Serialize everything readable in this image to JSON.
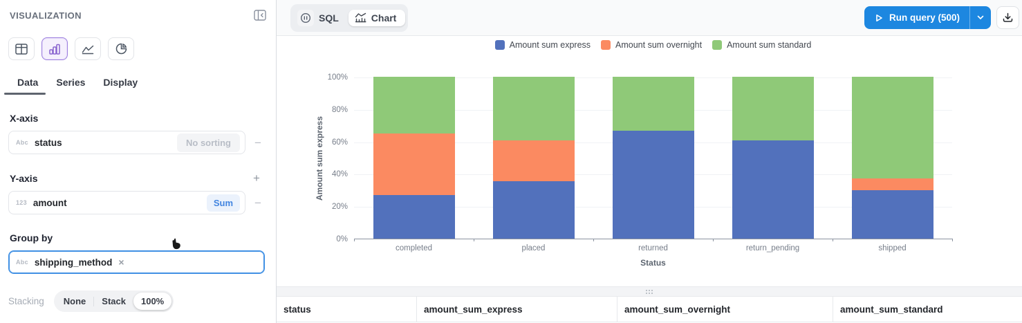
{
  "sidebar": {
    "title": "VISUALIZATION",
    "chart_type_icons": [
      {
        "name": "table",
        "selected": false
      },
      {
        "name": "bar",
        "selected": true
      },
      {
        "name": "line",
        "selected": false
      },
      {
        "name": "pie",
        "selected": false
      }
    ],
    "tabs": [
      {
        "label": "Data",
        "active": true
      },
      {
        "label": "Series",
        "active": false
      },
      {
        "label": "Display",
        "active": false
      }
    ],
    "x_axis": {
      "heading": "X-axis",
      "field_type": "Abc",
      "field": "status",
      "sort_label": "No sorting",
      "remove_label": "−"
    },
    "y_axis": {
      "heading": "Y-axis",
      "field_type": "123",
      "field": "amount",
      "aggregation_label": "Sum",
      "add_label": "+",
      "remove_label": "−"
    },
    "group_by": {
      "heading": "Group by",
      "field_type": "Abc",
      "field": "shipping_method",
      "clear_label": "×"
    },
    "stacking": {
      "heading": "Stacking",
      "options": [
        "None",
        "Stack",
        "100%"
      ],
      "selected": "100%"
    }
  },
  "toolbar": {
    "view_toggle": [
      {
        "label": "SQL",
        "icon": "sql-icon",
        "active": false
      },
      {
        "label": "Chart",
        "icon": "chart-icon",
        "active": true
      }
    ],
    "run_query_label": "Run query (500)"
  },
  "chart_data": {
    "type": "bar",
    "stacking": "100%",
    "xlabel": "Status",
    "ylabel": "Amount sum express",
    "categories": [
      "completed",
      "placed",
      "returned",
      "return_pending",
      "shipped"
    ],
    "series": [
      {
        "name": "Amount sum express",
        "color": "#5271bc",
        "values": [
          27,
          35.5,
          66.5,
          60.5,
          30
        ]
      },
      {
        "name": "Amount sum overnight",
        "color": "#fb8a61",
        "values": [
          38,
          25,
          0,
          0,
          7
        ]
      },
      {
        "name": "Amount sum standard",
        "color": "#8fc978",
        "values": [
          35,
          39.5,
          33.5,
          39.5,
          63
        ]
      }
    ],
    "value_unit": "percent_of_total",
    "ylim": [
      0,
      100
    ],
    "ytick_labels": [
      "0%",
      "20%",
      "40%",
      "60%",
      "80%",
      "100%"
    ],
    "legend_position": "top",
    "grid": true
  },
  "table": {
    "columns": [
      "status",
      "amount_sum_express",
      "amount_sum_overnight",
      "amount_sum_standard"
    ]
  },
  "colors": {
    "run_button": "#1d87e0",
    "focus_border": "#4090e4",
    "selected_chart_type": "#9b7ede"
  }
}
